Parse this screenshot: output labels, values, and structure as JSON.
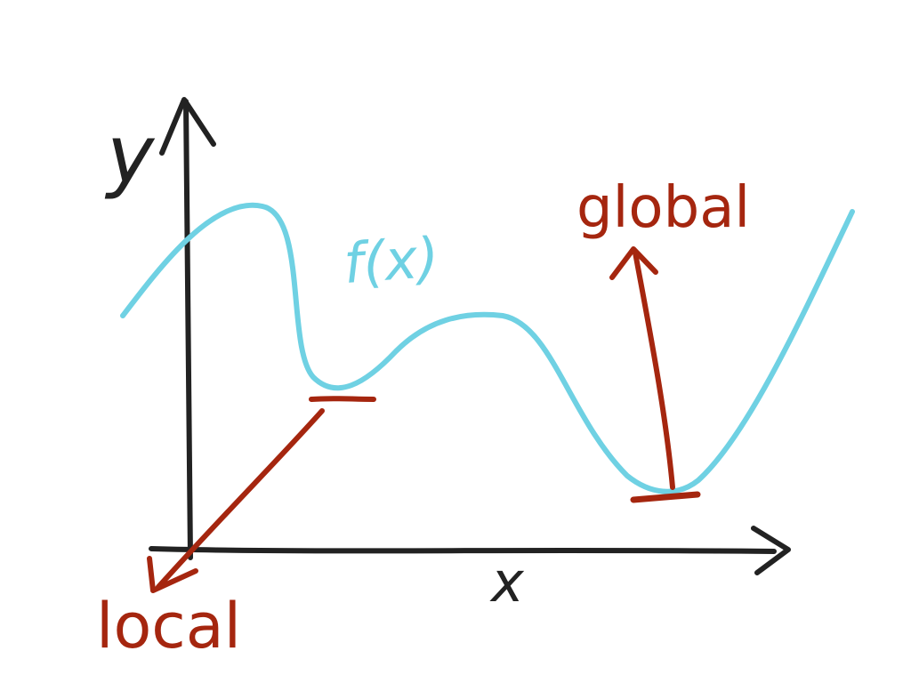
{
  "diagram": {
    "axes": {
      "x_label": "x",
      "y_label": "y"
    },
    "curve": {
      "label": "f(x)"
    },
    "annotations": {
      "local_label": "local",
      "global_label": "global"
    },
    "colors": {
      "background": "#ffffff",
      "axis": "#222222",
      "curve": "#6fd1e3",
      "annotation": "#a5260f"
    }
  }
}
